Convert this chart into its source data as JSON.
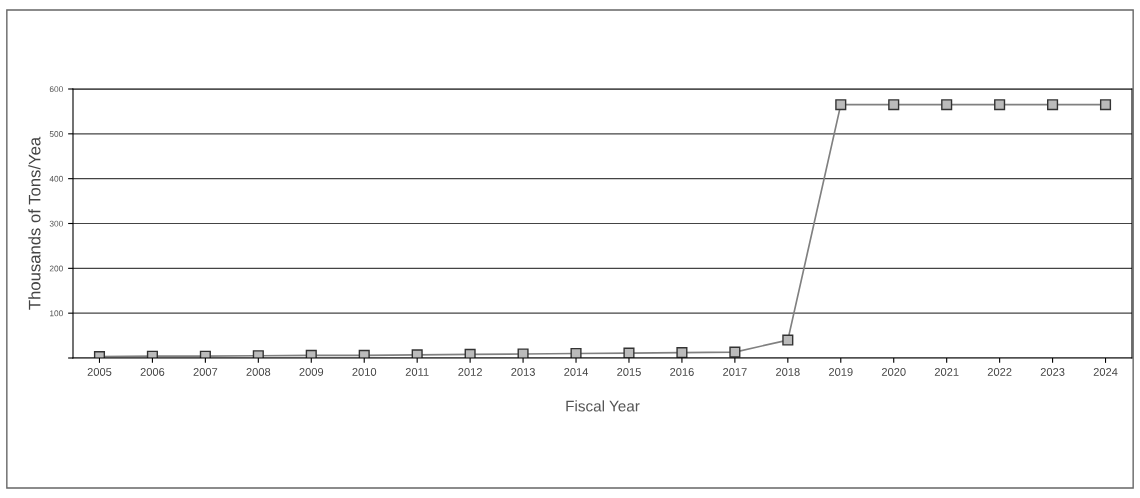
{
  "chart_data": {
    "type": "line",
    "xlabel": "Fiscal Year",
    "ylabel": "Thousands of Tons/Yea",
    "categories": [
      "2005",
      "2006",
      "2007",
      "2008",
      "2009",
      "2010",
      "2011",
      "2012",
      "2013",
      "2014",
      "2015",
      "2016",
      "2017",
      "2018",
      "2019",
      "2020",
      "2021",
      "2022",
      "2023",
      "2024"
    ],
    "series": [
      {
        "color": "#808080",
        "values": [
          3,
          4,
          4,
          5,
          6,
          6,
          7,
          8,
          9,
          10,
          11,
          12,
          13,
          40,
          565,
          565,
          565,
          565,
          565,
          565
        ]
      }
    ],
    "ylim": [
      0,
      600
    ],
    "yticks": [
      {
        "value": 0,
        "label": null
      },
      100,
      200,
      300,
      400,
      500,
      600
    ],
    "grid": "y",
    "marker": "square",
    "line_style": "solid"
  }
}
